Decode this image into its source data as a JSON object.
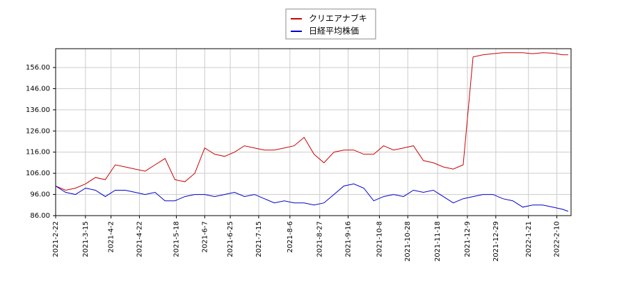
{
  "chart_data": {
    "type": "line",
    "x": [
      "2021-2-22",
      "2021-3-1",
      "2021-3-8",
      "2021-3-15",
      "2021-3-22",
      "2021-3-29",
      "2021-4-5",
      "2021-4-12",
      "2021-4-19",
      "2021-4-26",
      "2021-5-3",
      "2021-5-10",
      "2021-5-17",
      "2021-5-24",
      "2021-5-31",
      "2021-6-7",
      "2021-6-14",
      "2021-6-21",
      "2021-6-28",
      "2021-7-5",
      "2021-7-12",
      "2021-7-19",
      "2021-7-26",
      "2021-8-2",
      "2021-8-9",
      "2021-8-16",
      "2021-8-23",
      "2021-8-30",
      "2021-9-6",
      "2021-9-13",
      "2021-9-20",
      "2021-9-27",
      "2021-10-4",
      "2021-10-11",
      "2021-10-18",
      "2021-10-25",
      "2021-11-1",
      "2021-11-8",
      "2021-11-15",
      "2021-11-22",
      "2021-11-29",
      "2021-12-6",
      "2021-12-13",
      "2021-12-20",
      "2021-12-27",
      "2022-1-3",
      "2022-1-10",
      "2022-1-17",
      "2022-1-24",
      "2022-1-31",
      "2022-2-7",
      "2022-2-14",
      "2022-2-18"
    ],
    "series": [
      {
        "name": "クリエアナブキ",
        "color": "#cc0000",
        "values": [
          100,
          98,
          99,
          101,
          104,
          103,
          110,
          109,
          108,
          107,
          110,
          113,
          103,
          102,
          106,
          118,
          115,
          114,
          116,
          119,
          118,
          117,
          117,
          118,
          119,
          123,
          115,
          111,
          116,
          117,
          117,
          115,
          115,
          119,
          117,
          118,
          119,
          112,
          111,
          109,
          108,
          110,
          161,
          162,
          162.5,
          163,
          163,
          163,
          162.5,
          163,
          162.8,
          162,
          162
        ]
      },
      {
        "name": "日経平均株価",
        "color": "#0000cc",
        "values": [
          100,
          97,
          96,
          99,
          98,
          95,
          98,
          98,
          97,
          96,
          97,
          93,
          93,
          95,
          96,
          96,
          95,
          96,
          97,
          95,
          96,
          94,
          92,
          93,
          92,
          92,
          91,
          92,
          96,
          100,
          101,
          99,
          93,
          95,
          96,
          95,
          98,
          97,
          98,
          95,
          92,
          94,
          95,
          96,
          96,
          94,
          93,
          90,
          91,
          91,
          90,
          89,
          88
        ]
      }
    ],
    "xlim": [
      "2021-2-22",
      "2022-2-20"
    ],
    "xticks": [
      "2021-2-22",
      "2021-3-15",
      "2021-4-2",
      "2021-4-22",
      "2021-5-18",
      "2021-6-7",
      "2021-6-25",
      "2021-7-15",
      "2021-8-6",
      "2021-8-27",
      "2021-9-16",
      "2021-10-8",
      "2021-10-28",
      "2021-11-18",
      "2021-12-9",
      "2021-12-29",
      "2022-1-21",
      "2022-2-10"
    ],
    "ylim": [
      86,
      164.9
    ],
    "yticks": [
      {
        "value": 86,
        "label": "86.00"
      },
      {
        "value": 96,
        "label": "96.00"
      },
      {
        "value": 106,
        "label": "106.00"
      },
      {
        "value": 116,
        "label": "116.00"
      },
      {
        "value": 126,
        "label": "126.00"
      },
      {
        "value": 136,
        "label": "136.00"
      },
      {
        "value": 146,
        "label": "146.00"
      },
      {
        "value": 156,
        "label": "156.00"
      }
    ],
    "grid": true,
    "legend": "top"
  }
}
